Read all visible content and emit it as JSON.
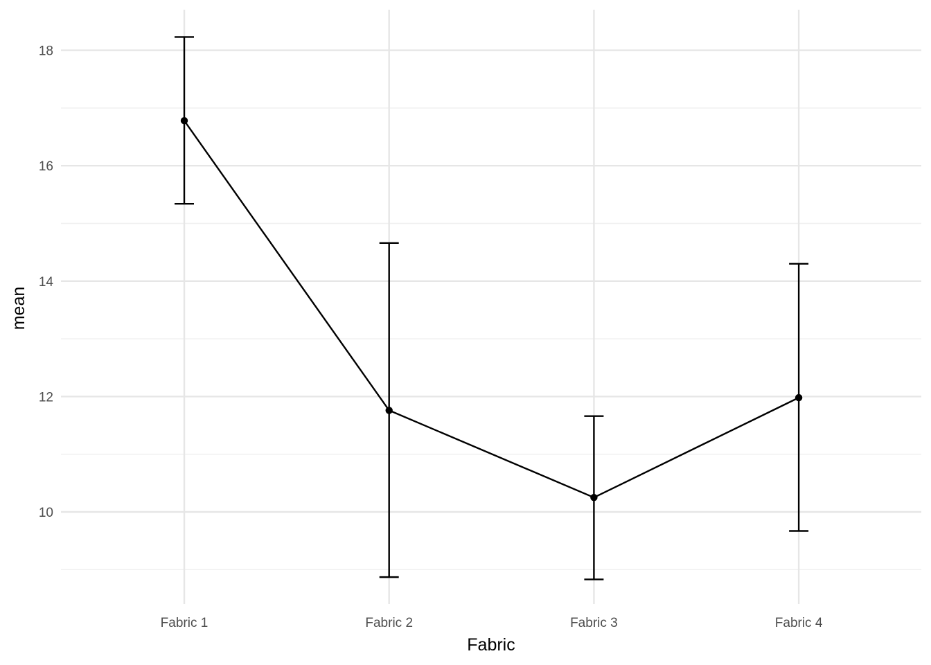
{
  "chart_data": {
    "type": "line",
    "title": "",
    "xlabel": "Fabric",
    "ylabel": "mean",
    "categories": [
      "Fabric 1",
      "Fabric 2",
      "Fabric 3",
      "Fabric 4"
    ],
    "series": [
      {
        "values": [
          16.78,
          11.76,
          10.25,
          11.98
        ],
        "error_lower": [
          15.34,
          8.87,
          8.83,
          9.67
        ],
        "error_upper": [
          18.23,
          14.66,
          11.66,
          14.3
        ]
      }
    ],
    "ylim": [
      8.75,
      18.75
    ],
    "yticks": [
      10,
      12,
      14,
      16,
      18
    ],
    "grid": true,
    "legend": "none",
    "colors": {
      "series": "#000000",
      "grid": "#e6e6e6",
      "tick_text": "#4d4d4d",
      "axis_title": "#000000",
      "background": "#ffffff"
    }
  }
}
